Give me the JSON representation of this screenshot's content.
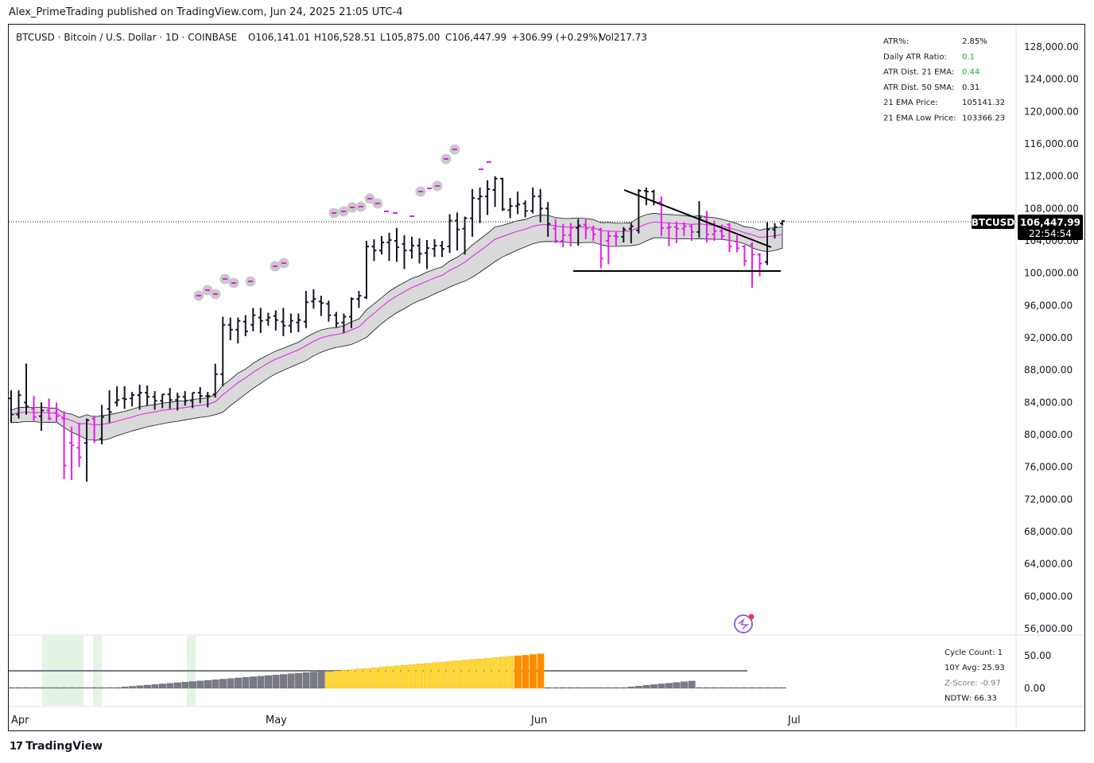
{
  "header": {
    "published": "Alex_PrimeTrading published on TradingView.com, Jun 24, 2025 21:05 UTC-4"
  },
  "legend": {
    "symbol": "BTCUSD · Bitcoin / U.S. Dollar · 1D · COINBASE",
    "o_label": "O",
    "o": "106,141.01",
    "h_label": "H",
    "h": "106,528.51",
    "l_label": "L",
    "l": "105,875.00",
    "c_label": "C",
    "c": "106,447.99",
    "change": "+306.99 (+0.29%)",
    "vol_label": "Vol",
    "vol": "217.73"
  },
  "stats_table": [
    {
      "label": "ATR%:",
      "value": "2.85%",
      "color": "#131722"
    },
    {
      "label": "Daily ATR Ratio:",
      "value": "0.1",
      "color": "#26a33f"
    },
    {
      "label": "ATR Dist. 21 EMA:",
      "value": "0.44",
      "color": "#26a33f"
    },
    {
      "label": "ATR Dist. 50 SMA:",
      "value": "0.31",
      "color": "#131722"
    },
    {
      "label": "21 EMA Price:",
      "value": "105141.32",
      "color": "#131722"
    },
    {
      "label": "21 EMA Low Price:",
      "value": "103366.23",
      "color": "#131722"
    }
  ],
  "price_tag": {
    "symbol": "BTCUSD",
    "price": "106,447.99",
    "countdown": "22:54:54"
  },
  "price_axis": [
    "128,000.00",
    "124,000.00",
    "120,000.00",
    "116,000.00",
    "112,000.00",
    "108,000.00",
    "104,000.00",
    "100,000.00",
    "96,000.00",
    "92,000.00",
    "88,000.00",
    "84,000.00",
    "80,000.00",
    "76,000.00",
    "72,000.00",
    "68,000.00",
    "64,000.00",
    "60,000.00",
    "56,000.00"
  ],
  "osc_axis": [
    "50.00",
    "0.00"
  ],
  "time_axis": [
    "Apr",
    "May",
    "Jun",
    "Jul"
  ],
  "osc_table": [
    {
      "label": "Cycle Count:",
      "value": "1"
    },
    {
      "label": "10Y Avg:",
      "value": "25.93"
    },
    {
      "label": "Z-Score:",
      "value": "-0.97"
    },
    {
      "label": "NDTW:",
      "value": "66.33"
    }
  ],
  "footer": {
    "brand": "TradingView",
    "logo_icon": "tradingview-logo-icon"
  },
  "colors": {
    "bull": "#131722",
    "bear": "#e21ee8",
    "band": "#d9d9d9",
    "ema": "#e21ee8",
    "yellow": "#fdd835",
    "orange": "#ff8c00",
    "gray": "#787b86",
    "green_bg": "#e3f3e4"
  },
  "chart_data": {
    "type": "bar",
    "title": "BTCUSD · Bitcoin / U.S. Dollar · 1D · COINBASE",
    "ylim": [
      56000,
      128000
    ],
    "x": [
      "Apr",
      "May",
      "Jun",
      "Jul"
    ],
    "last_close": 106447.99,
    "ohlc": [
      {
        "o": 84500,
        "h": 85500,
        "l": 81500,
        "c": 82500
      },
      {
        "o": 82500,
        "h": 85500,
        "l": 82000,
        "c": 84900
      },
      {
        "o": 84000,
        "h": 88800,
        "l": 82500,
        "c": 83500
      },
      {
        "o": 83200,
        "h": 84800,
        "l": 81600,
        "c": 82200
      },
      {
        "o": 82300,
        "h": 84000,
        "l": 80500,
        "c": 83000
      },
      {
        "o": 83000,
        "h": 84500,
        "l": 81800,
        "c": 82000
      },
      {
        "o": 82700,
        "h": 84000,
        "l": 81500,
        "c": 82300
      },
      {
        "o": 82000,
        "h": 82900,
        "l": 74500,
        "c": 76200
      },
      {
        "o": 79000,
        "h": 81000,
        "l": 74400,
        "c": 78700
      },
      {
        "o": 78400,
        "h": 81500,
        "l": 76000,
        "c": 77200
      },
      {
        "o": 79000,
        "h": 82000,
        "l": 74200,
        "c": 81800
      },
      {
        "o": 82000,
        "h": 82400,
        "l": 79000,
        "c": 79300
      },
      {
        "o": 79500,
        "h": 83700,
        "l": 78800,
        "c": 82200
      },
      {
        "o": 83200,
        "h": 85500,
        "l": 81500,
        "c": 82800
      },
      {
        "o": 84000,
        "h": 86000,
        "l": 83500,
        "c": 84300
      },
      {
        "o": 84500,
        "h": 86000,
        "l": 83200,
        "c": 84400
      },
      {
        "o": 84500,
        "h": 85300,
        "l": 83500,
        "c": 84900
      },
      {
        "o": 84900,
        "h": 86200,
        "l": 83100,
        "c": 85200
      },
      {
        "o": 85200,
        "h": 86100,
        "l": 83600,
        "c": 84700
      },
      {
        "o": 84700,
        "h": 85400,
        "l": 83100,
        "c": 84200
      },
      {
        "o": 84200,
        "h": 85000,
        "l": 83300,
        "c": 85000
      },
      {
        "o": 85000,
        "h": 85800,
        "l": 83200,
        "c": 84300
      },
      {
        "o": 84300,
        "h": 85200,
        "l": 83000,
        "c": 84700
      },
      {
        "o": 84700,
        "h": 85400,
        "l": 83600,
        "c": 84200
      },
      {
        "o": 84200,
        "h": 85200,
        "l": 83300,
        "c": 85200
      },
      {
        "o": 85200,
        "h": 85900,
        "l": 83900,
        "c": 84800
      },
      {
        "o": 84800,
        "h": 85300,
        "l": 83400,
        "c": 84800
      },
      {
        "o": 85000,
        "h": 88800,
        "l": 84600,
        "c": 87500
      },
      {
        "o": 87500,
        "h": 94600,
        "l": 86000,
        "c": 93600
      },
      {
        "o": 93600,
        "h": 94500,
        "l": 91700,
        "c": 93000
      },
      {
        "o": 93000,
        "h": 94500,
        "l": 91300,
        "c": 94100
      },
      {
        "o": 94000,
        "h": 94800,
        "l": 92200,
        "c": 92800
      },
      {
        "o": 93600,
        "h": 95700,
        "l": 92800,
        "c": 94800
      },
      {
        "o": 94500,
        "h": 95700,
        "l": 92600,
        "c": 94100
      },
      {
        "o": 94200,
        "h": 95100,
        "l": 93500,
        "c": 94500
      },
      {
        "o": 94700,
        "h": 95400,
        "l": 92900,
        "c": 94200
      },
      {
        "o": 94000,
        "h": 95700,
        "l": 92200,
        "c": 93500
      },
      {
        "o": 93500,
        "h": 95000,
        "l": 92600,
        "c": 94100
      },
      {
        "o": 93900,
        "h": 95000,
        "l": 92700,
        "c": 94200
      },
      {
        "o": 94000,
        "h": 97800,
        "l": 93200,
        "c": 96400
      },
      {
        "o": 96500,
        "h": 98000,
        "l": 95600,
        "c": 96800
      },
      {
        "o": 96500,
        "h": 97200,
        "l": 94700,
        "c": 96300
      },
      {
        "o": 96200,
        "h": 96600,
        "l": 94000,
        "c": 94800
      },
      {
        "o": 94800,
        "h": 95200,
        "l": 93300,
        "c": 93800
      },
      {
        "o": 93900,
        "h": 95000,
        "l": 92600,
        "c": 94600
      },
      {
        "o": 94600,
        "h": 97000,
        "l": 93200,
        "c": 96800
      },
      {
        "o": 96800,
        "h": 97800,
        "l": 95700,
        "c": 97200
      },
      {
        "o": 97000,
        "h": 104000,
        "l": 96800,
        "c": 103300
      },
      {
        "o": 103300,
        "h": 104200,
        "l": 101500,
        "c": 102800
      },
      {
        "o": 102800,
        "h": 104600,
        "l": 102300,
        "c": 103800
      },
      {
        "o": 103800,
        "h": 105000,
        "l": 101500,
        "c": 104100
      },
      {
        "o": 104000,
        "h": 105600,
        "l": 101400,
        "c": 103200
      },
      {
        "o": 103600,
        "h": 104700,
        "l": 100500,
        "c": 102800
      },
      {
        "o": 102800,
        "h": 104500,
        "l": 101800,
        "c": 103400
      },
      {
        "o": 103400,
        "h": 104300,
        "l": 101200,
        "c": 102400
      },
      {
        "o": 102500,
        "h": 104100,
        "l": 100500,
        "c": 103100
      },
      {
        "o": 103000,
        "h": 104200,
        "l": 102000,
        "c": 103400
      },
      {
        "o": 103400,
        "h": 104000,
        "l": 102000,
        "c": 103000
      },
      {
        "o": 103300,
        "h": 107300,
        "l": 102500,
        "c": 106500
      },
      {
        "o": 106500,
        "h": 107500,
        "l": 102800,
        "c": 105400
      },
      {
        "o": 105500,
        "h": 107000,
        "l": 102300,
        "c": 106800
      },
      {
        "o": 106800,
        "h": 110400,
        "l": 104500,
        "c": 109300
      },
      {
        "o": 109200,
        "h": 110600,
        "l": 106200,
        "c": 109500
      },
      {
        "o": 109500,
        "h": 111500,
        "l": 107200,
        "c": 110400
      },
      {
        "o": 110300,
        "h": 112000,
        "l": 108200,
        "c": 111700
      },
      {
        "o": 111700,
        "h": 111800,
        "l": 107700,
        "c": 107900
      },
      {
        "o": 107800,
        "h": 109300,
        "l": 106800,
        "c": 108300
      },
      {
        "o": 108300,
        "h": 110100,
        "l": 107300,
        "c": 108500
      },
      {
        "o": 108600,
        "h": 109000,
        "l": 106900,
        "c": 107700
      },
      {
        "o": 107700,
        "h": 110600,
        "l": 107400,
        "c": 109500
      },
      {
        "o": 109500,
        "h": 110400,
        "l": 106300,
        "c": 108000
      },
      {
        "o": 108000,
        "h": 108800,
        "l": 104500,
        "c": 106100
      },
      {
        "o": 105500,
        "h": 106700,
        "l": 103700,
        "c": 104000
      },
      {
        "o": 104000,
        "h": 106100,
        "l": 103200,
        "c": 104700
      },
      {
        "o": 104700,
        "h": 106200,
        "l": 103300,
        "c": 105600
      },
      {
        "o": 105600,
        "h": 106700,
        "l": 103400,
        "c": 105900
      },
      {
        "o": 106000,
        "h": 106800,
        "l": 104200,
        "c": 105500
      },
      {
        "o": 105400,
        "h": 105900,
        "l": 104000,
        "c": 104800
      },
      {
        "o": 105400,
        "h": 105600,
        "l": 100600,
        "c": 101800
      },
      {
        "o": 104000,
        "h": 105200,
        "l": 101100,
        "c": 104600
      },
      {
        "o": 104600,
        "h": 105100,
        "l": 103400,
        "c": 104500
      },
      {
        "o": 104500,
        "h": 105700,
        "l": 103800,
        "c": 105400
      },
      {
        "o": 105500,
        "h": 106200,
        "l": 103700,
        "c": 105800
      },
      {
        "o": 105300,
        "h": 110400,
        "l": 104900,
        "c": 110200
      },
      {
        "o": 110200,
        "h": 110600,
        "l": 108400,
        "c": 110100
      },
      {
        "o": 110100,
        "h": 110300,
        "l": 108400,
        "c": 108800
      },
      {
        "o": 108800,
        "h": 109500,
        "l": 104600,
        "c": 105600
      },
      {
        "o": 105600,
        "h": 106300,
        "l": 103300,
        "c": 105700
      },
      {
        "o": 105700,
        "h": 106400,
        "l": 103700,
        "c": 105500
      },
      {
        "o": 105500,
        "h": 106300,
        "l": 104600,
        "c": 105800
      },
      {
        "o": 105800,
        "h": 106000,
        "l": 104000,
        "c": 105100
      },
      {
        "o": 105100,
        "h": 108900,
        "l": 104400,
        "c": 106900
      },
      {
        "o": 106900,
        "h": 107700,
        "l": 103800,
        "c": 104800
      },
      {
        "o": 104800,
        "h": 106500,
        "l": 104000,
        "c": 105200
      },
      {
        "o": 105200,
        "h": 106000,
        "l": 104100,
        "c": 104600
      },
      {
        "o": 106000,
        "h": 106200,
        "l": 102600,
        "c": 103300
      },
      {
        "o": 103900,
        "h": 104700,
        "l": 102600,
        "c": 103100
      },
      {
        "o": 103300,
        "h": 103500,
        "l": 100900,
        "c": 101500
      },
      {
        "o": 103500,
        "h": 103800,
        "l": 98200,
        "c": 102300
      },
      {
        "o": 102300,
        "h": 102500,
        "l": 99600,
        "c": 101200
      },
      {
        "o": 101400,
        "h": 106300,
        "l": 101000,
        "c": 105400
      },
      {
        "o": 105400,
        "h": 106200,
        "l": 104300,
        "c": 105700
      },
      {
        "o": 106141.01,
        "h": 106528.51,
        "l": 105875,
        "c": 106447.99
      }
    ]
  }
}
